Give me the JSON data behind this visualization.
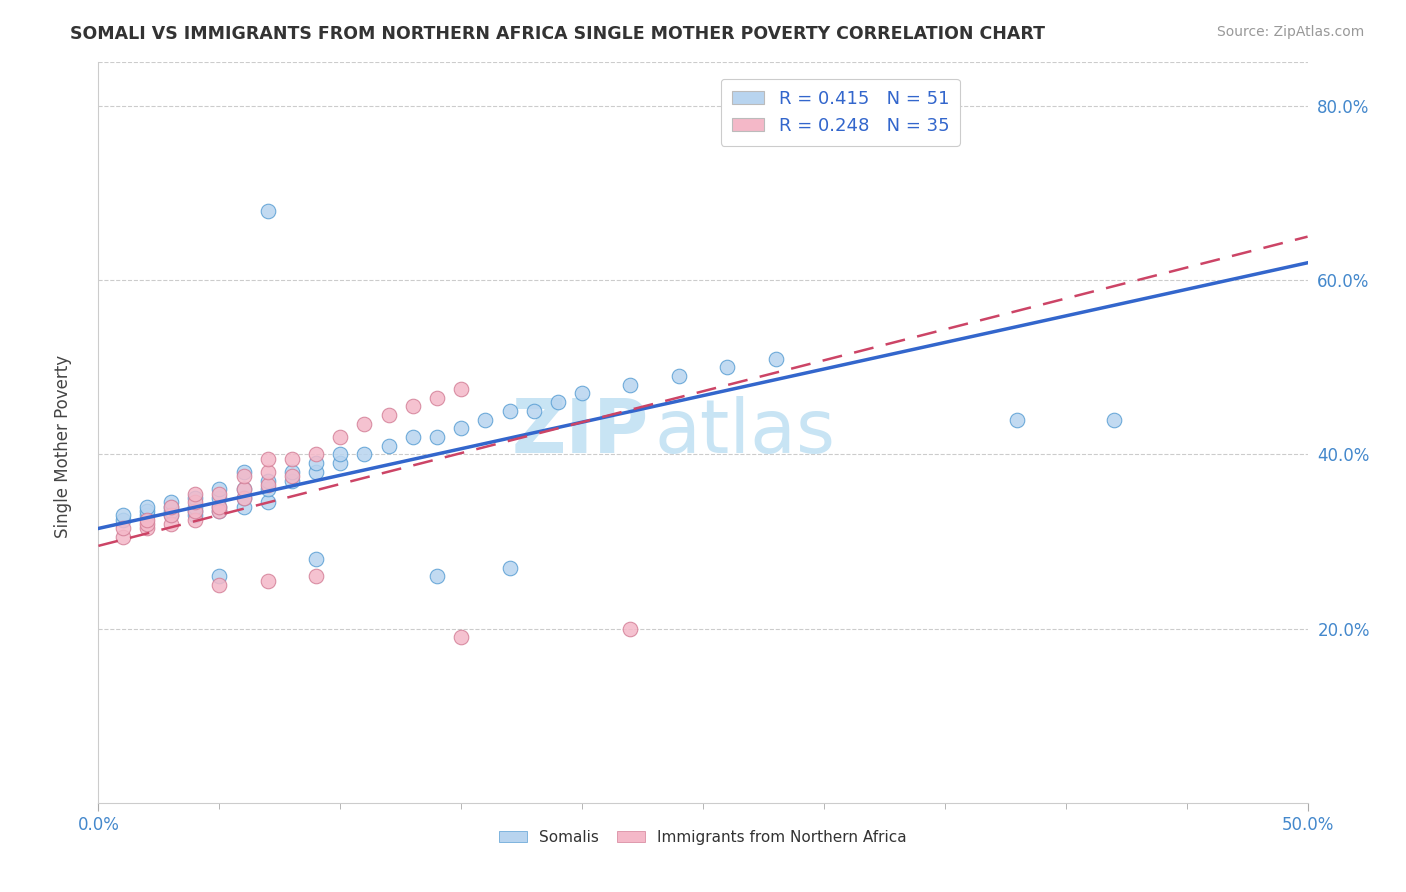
{
  "title": "SOMALI VS IMMIGRANTS FROM NORTHERN AFRICA SINGLE MOTHER POVERTY CORRELATION CHART",
  "source": "Source: ZipAtlas.com",
  "ylabel": "Single Mother Poverty",
  "xlim": [
    0.0,
    0.5
  ],
  "ylim": [
    0.0,
    0.85
  ],
  "xtick_vals": [
    0.0,
    0.05,
    0.1,
    0.15,
    0.2,
    0.25,
    0.3,
    0.35,
    0.4,
    0.45,
    0.5
  ],
  "xtick_labels_show": {
    "0.0": "0.0%",
    "0.5": "50.0%"
  },
  "ytick_values": [
    0.2,
    0.4,
    0.6,
    0.8
  ],
  "ytick_labels": [
    "20.0%",
    "40.0%",
    "60.0%",
    "80.0%"
  ],
  "legend_entries": [
    {
      "label": "R = 0.415   N = 51",
      "color": "#b8d4ef"
    },
    {
      "label": "R = 0.248   N = 35",
      "color": "#f4b8c8"
    }
  ],
  "somali_color": "#b8d4ef",
  "somali_edge": "#5a9fd4",
  "northern_africa_color": "#f4b8c8",
  "northern_africa_edge": "#d48098",
  "trendline_somali_color": "#3366cc",
  "trendline_na_color": "#cc4466",
  "watermark_top": "ZIP",
  "watermark_bot": "atlas",
  "watermark_color": "#c8e4f4",
  "background_color": "#ffffff",
  "grid_color": "#cccccc",
  "somali_scatter": [
    [
      0.01,
      0.325
    ],
    [
      0.01,
      0.33
    ],
    [
      0.02,
      0.33
    ],
    [
      0.02,
      0.335
    ],
    [
      0.02,
      0.34
    ],
    [
      0.03,
      0.33
    ],
    [
      0.03,
      0.335
    ],
    [
      0.03,
      0.34
    ],
    [
      0.03,
      0.345
    ],
    [
      0.04,
      0.33
    ],
    [
      0.04,
      0.335
    ],
    [
      0.04,
      0.34
    ],
    [
      0.04,
      0.35
    ],
    [
      0.05,
      0.335
    ],
    [
      0.05,
      0.34
    ],
    [
      0.05,
      0.35
    ],
    [
      0.05,
      0.36
    ],
    [
      0.06,
      0.34
    ],
    [
      0.06,
      0.35
    ],
    [
      0.06,
      0.36
    ],
    [
      0.06,
      0.38
    ],
    [
      0.07,
      0.345
    ],
    [
      0.07,
      0.36
    ],
    [
      0.07,
      0.37
    ],
    [
      0.08,
      0.37
    ],
    [
      0.08,
      0.38
    ],
    [
      0.09,
      0.38
    ],
    [
      0.09,
      0.39
    ],
    [
      0.1,
      0.39
    ],
    [
      0.1,
      0.4
    ],
    [
      0.11,
      0.4
    ],
    [
      0.12,
      0.41
    ],
    [
      0.13,
      0.42
    ],
    [
      0.14,
      0.42
    ],
    [
      0.15,
      0.43
    ],
    [
      0.16,
      0.44
    ],
    [
      0.17,
      0.45
    ],
    [
      0.18,
      0.45
    ],
    [
      0.19,
      0.46
    ],
    [
      0.2,
      0.47
    ],
    [
      0.22,
      0.48
    ],
    [
      0.24,
      0.49
    ],
    [
      0.26,
      0.5
    ],
    [
      0.28,
      0.51
    ],
    [
      0.05,
      0.26
    ],
    [
      0.09,
      0.28
    ],
    [
      0.14,
      0.26
    ],
    [
      0.17,
      0.27
    ],
    [
      0.07,
      0.68
    ],
    [
      0.38,
      0.44
    ],
    [
      0.42,
      0.44
    ]
  ],
  "na_scatter": [
    [
      0.01,
      0.305
    ],
    [
      0.01,
      0.315
    ],
    [
      0.02,
      0.315
    ],
    [
      0.02,
      0.32
    ],
    [
      0.02,
      0.325
    ],
    [
      0.03,
      0.32
    ],
    [
      0.03,
      0.33
    ],
    [
      0.03,
      0.34
    ],
    [
      0.04,
      0.325
    ],
    [
      0.04,
      0.335
    ],
    [
      0.04,
      0.345
    ],
    [
      0.04,
      0.355
    ],
    [
      0.05,
      0.335
    ],
    [
      0.05,
      0.34
    ],
    [
      0.05,
      0.355
    ],
    [
      0.06,
      0.35
    ],
    [
      0.06,
      0.36
    ],
    [
      0.06,
      0.375
    ],
    [
      0.07,
      0.365
    ],
    [
      0.07,
      0.38
    ],
    [
      0.07,
      0.395
    ],
    [
      0.08,
      0.375
    ],
    [
      0.08,
      0.395
    ],
    [
      0.09,
      0.4
    ],
    [
      0.1,
      0.42
    ],
    [
      0.11,
      0.435
    ],
    [
      0.12,
      0.445
    ],
    [
      0.13,
      0.455
    ],
    [
      0.14,
      0.465
    ],
    [
      0.15,
      0.475
    ],
    [
      0.05,
      0.25
    ],
    [
      0.07,
      0.255
    ],
    [
      0.09,
      0.26
    ],
    [
      0.15,
      0.19
    ],
    [
      0.22,
      0.2
    ]
  ],
  "trendline_somali_manual": [
    0.0,
    0.5,
    0.315,
    0.62
  ],
  "trendline_na_manual": [
    0.0,
    0.5,
    0.295,
    0.65
  ]
}
